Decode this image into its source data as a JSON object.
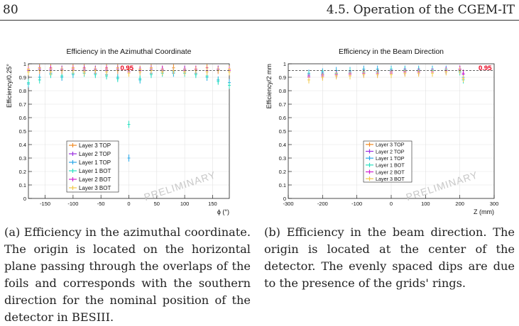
{
  "header": {
    "page_number": "80",
    "section": "4.5.  Operation of the CGEM-IT"
  },
  "figures": [
    {
      "id": "a",
      "caption": "(a) Efficiency in the azimuthal coordinate. The origin is located on the horizontal plane passing through the overlaps of the foils and corresponds with the southern direction for the nominal position of the detector in BESIII.",
      "chart_data": {
        "type": "scatter",
        "title": "Efficiency in the Azimuthal Coordinate",
        "xlabel": "ϕ (°)",
        "ylabel": "Efficiency/0.25°",
        "xlim": [
          -180,
          180
        ],
        "ylim": [
          0,
          1
        ],
        "xticks": [
          -150,
          -100,
          -50,
          0,
          50,
          100,
          150
        ],
        "yticks": [
          0,
          0.1,
          0.2,
          0.3,
          0.4,
          0.5,
          0.6,
          0.7,
          0.8,
          0.9,
          1
        ],
        "reference_line": {
          "y": 0.95,
          "label": "0.95",
          "color": "#e8001c"
        },
        "grid": true,
        "legend_position": "bottom-left",
        "watermark": "PRELIMINARY",
        "series": [
          {
            "name": "Layer 3 TOP",
            "color": "#f08a24",
            "x": [
              -180,
              -160,
              -140,
              -120,
              -100,
              -80,
              -60,
              -40,
              -20,
              0,
              20,
              40,
              60,
              80,
              100,
              120,
              140,
              160,
              180
            ],
            "y": [
              0.96,
              0.97,
              0.97,
              0.96,
              0.97,
              0.97,
              0.96,
              0.97,
              0.97,
              0.96,
              0.96,
              0.97,
              0.96,
              0.97,
              0.96,
              0.96,
              0.97,
              0.96,
              0.96
            ]
          },
          {
            "name": "Layer 2 TOP",
            "color": "#9b30e0",
            "x": [
              -180,
              -160,
              -140,
              -120,
              -100,
              -80,
              -60,
              -40,
              -20,
              0,
              20,
              40,
              60,
              80,
              100,
              120,
              140,
              160,
              180
            ],
            "y": [
              0.95,
              0.96,
              0.95,
              0.96,
              0.95,
              0.96,
              0.96,
              0.95,
              0.96,
              0.94,
              0.95,
              0.96,
              0.95,
              0.95,
              0.96,
              0.95,
              0.95,
              0.96,
              0.95
            ]
          },
          {
            "name": "Layer 1 TOP",
            "color": "#2aa7e8",
            "x": [
              -180,
              -160,
              -140,
              -120,
              -100,
              -80,
              -60,
              -40,
              -20,
              0,
              20,
              40,
              60,
              80,
              100,
              120,
              140,
              160,
              180
            ],
            "y": [
              0.85,
              0.9,
              0.93,
              0.9,
              0.92,
              0.94,
              0.93,
              0.92,
              0.9,
              0.3,
              0.88,
              0.93,
              0.94,
              0.93,
              0.94,
              0.93,
              0.9,
              0.88,
              0.86
            ]
          },
          {
            "name": "Layer 1 BOT",
            "color": "#28e0c0",
            "x": [
              -180,
              -160,
              -140,
              -120,
              -100,
              -80,
              -60,
              -40,
              -20,
              0,
              20,
              40,
              60,
              80,
              100,
              120,
              140,
              160,
              180
            ],
            "y": [
              0.86,
              0.88,
              0.92,
              0.91,
              0.93,
              0.93,
              0.92,
              0.91,
              0.89,
              0.55,
              0.89,
              0.92,
              0.93,
              0.94,
              0.93,
              0.92,
              0.91,
              0.87,
              0.84
            ]
          },
          {
            "name": "Layer 2 BOT",
            "color": "#d020d0",
            "x": [
              -180,
              -160,
              -140,
              -120,
              -100,
              -80,
              -60,
              -40,
              -20,
              0,
              20,
              40,
              60,
              80,
              100,
              120,
              140,
              160,
              180
            ],
            "y": [
              0.95,
              0.95,
              0.96,
              0.95,
              0.96,
              0.95,
              0.95,
              0.96,
              0.95,
              0.94,
              0.95,
              0.95,
              0.96,
              0.95,
              0.95,
              0.96,
              0.95,
              0.95,
              0.95
            ]
          },
          {
            "name": "Layer 3 BOT",
            "color": "#f2c84a",
            "x": [
              -180,
              -160,
              -140,
              -120,
              -100,
              -80,
              -60,
              -40,
              -20,
              0,
              20,
              40,
              60,
              80,
              100,
              120,
              140,
              160,
              180
            ],
            "y": [
              0.94,
              0.95,
              0.94,
              0.95,
              0.95,
              0.94,
              0.95,
              0.94,
              0.95,
              0.93,
              0.94,
              0.95,
              0.94,
              0.95,
              0.94,
              0.95,
              0.94,
              0.95,
              0.94
            ]
          }
        ]
      }
    },
    {
      "id": "b",
      "caption": "(b) Efficiency in the beam direction. The origin is located at the center of the detector. The evenly spaced dips are due to the presence of the grids' rings.",
      "chart_data": {
        "type": "scatter",
        "title": "Efficiency in the Beam Direction",
        "xlabel": "Z (mm)",
        "ylabel": "Efficiency/2 mm",
        "xlim": [
          -300,
          300
        ],
        "ylim": [
          0,
          1
        ],
        "xticks": [
          -300,
          -200,
          -100,
          0,
          100,
          200,
          300
        ],
        "yticks": [
          0,
          0.1,
          0.2,
          0.3,
          0.4,
          0.5,
          0.6,
          0.7,
          0.8,
          0.9,
          1
        ],
        "reference_line": {
          "y": 0.95,
          "label": "0.95",
          "color": "#e8001c"
        },
        "grid": true,
        "legend_position": "center",
        "watermark": "PRELIMINARY",
        "series": [
          {
            "name": "Layer 3 TOP",
            "color": "#f08a24",
            "x": [
              -240,
              -200,
              -160,
              -120,
              -80,
              -40,
              0,
              40,
              80,
              120,
              160,
              200,
              210
            ],
            "y": [
              0.9,
              0.92,
              0.93,
              0.93,
              0.94,
              0.94,
              0.94,
              0.94,
              0.95,
              0.95,
              0.95,
              0.96,
              0.9
            ]
          },
          {
            "name": "Layer 2 TOP",
            "color": "#9b30e0",
            "x": [
              -240,
              -200,
              -160,
              -120,
              -80,
              -40,
              0,
              40,
              80,
              120,
              160,
              200,
              210
            ],
            "y": [
              0.91,
              0.92,
              0.92,
              0.93,
              0.93,
              0.94,
              0.94,
              0.94,
              0.94,
              0.95,
              0.95,
              0.96,
              0.92
            ]
          },
          {
            "name": "Layer 1 TOP",
            "color": "#2aa7e8",
            "x": [
              -240,
              -200,
              -160,
              -120,
              -80,
              -40,
              0,
              40,
              80,
              120,
              160,
              200,
              210
            ],
            "y": [
              0.93,
              0.94,
              0.95,
              0.95,
              0.96,
              0.96,
              0.96,
              0.96,
              0.96,
              0.96,
              0.96,
              0.95,
              0.9
            ]
          },
          {
            "name": "Layer 1 BOT",
            "color": "#28e0c0",
            "x": [
              -240,
              -200,
              -160,
              -120,
              -80,
              -40,
              0,
              40,
              80,
              120,
              160,
              200,
              210
            ],
            "y": [
              0.92,
              0.93,
              0.93,
              0.94,
              0.94,
              0.94,
              0.95,
              0.95,
              0.95,
              0.95,
              0.95,
              0.94,
              0.88
            ]
          },
          {
            "name": "Layer 2 BOT",
            "color": "#d020d0",
            "x": [
              -240,
              -200,
              -160,
              -120,
              -80,
              -40,
              0,
              40,
              80,
              120,
              160,
              200,
              210
            ],
            "y": [
              0.9,
              0.91,
              0.92,
              0.92,
              0.93,
              0.93,
              0.93,
              0.94,
              0.94,
              0.94,
              0.95,
              0.96,
              0.93
            ]
          },
          {
            "name": "Layer 3 BOT",
            "color": "#f2c84a",
            "x": [
              -240,
              -200,
              -160,
              -120,
              -80,
              -40,
              0,
              40,
              80,
              120,
              160,
              200,
              210
            ],
            "y": [
              0.88,
              0.9,
              0.91,
              0.91,
              0.92,
              0.92,
              0.92,
              0.93,
              0.93,
              0.93,
              0.94,
              0.95,
              0.89
            ]
          }
        ]
      }
    }
  ]
}
